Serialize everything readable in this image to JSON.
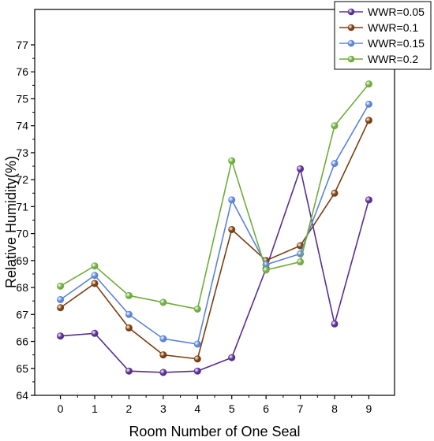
{
  "chart_data": {
    "type": "line",
    "xlabel": "Room Number of One Seal",
    "ylabel": "Relative Humidity(%)",
    "x": [
      0,
      1,
      2,
      3,
      4,
      5,
      6,
      7,
      8,
      9
    ],
    "xticks": [
      "0",
      "1",
      "2",
      "3",
      "4",
      "5",
      "6",
      "7",
      "8",
      "9"
    ],
    "yticks": [
      "64",
      "65",
      "66",
      "67",
      "68",
      "69",
      "70",
      "71",
      "72",
      "73",
      "74",
      "75",
      "76",
      "77"
    ],
    "ylim": [
      64,
      77
    ],
    "xlim": [
      -0.75,
      9.75
    ],
    "grid": false,
    "legend_position": "top-right",
    "series": [
      {
        "name": "WWR=0.05",
        "color": "#5a2d91",
        "values": [
          66.2,
          66.3,
          64.9,
          64.85,
          64.9,
          65.4,
          68.7,
          72.4,
          66.65,
          71.25
        ]
      },
      {
        "name": "WWR=0.1",
        "color": "#7a3e10",
        "values": [
          67.25,
          68.15,
          66.5,
          65.5,
          65.35,
          70.15,
          69.0,
          69.55,
          71.5,
          74.2
        ]
      },
      {
        "name": "WWR=0.15",
        "color": "#5b84d6",
        "values": [
          67.55,
          68.45,
          67.0,
          66.1,
          65.9,
          71.25,
          68.85,
          69.25,
          72.6,
          74.8
        ]
      },
      {
        "name": "WWR=0.2",
        "color": "#6fac3c",
        "values": [
          68.05,
          68.8,
          67.7,
          67.45,
          67.2,
          72.7,
          68.65,
          68.95,
          74.0,
          75.55
        ]
      }
    ]
  }
}
